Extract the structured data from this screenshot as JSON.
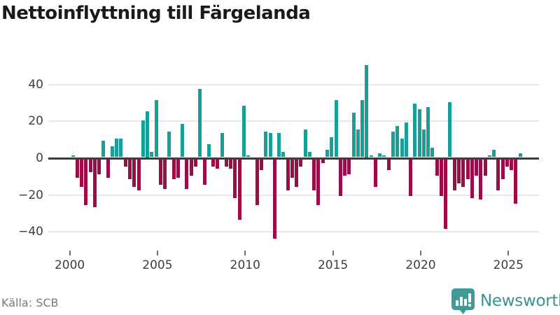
{
  "title": "Nettoinflyttning till Färgelanda",
  "source": "Källa: SCB",
  "brand": {
    "name": "Newsworthy",
    "icon": "newsworthy-speech-bubble-barchart",
    "color": "#419a96",
    "text_color": "#3a938f"
  },
  "colors": {
    "positive": "#16a099",
    "negative": "#9c0c48",
    "axis": "#3d3d3d",
    "grid": "#e8e8e8",
    "tick_label": "#3d3d3d",
    "source_text": "#7a7a7a",
    "background": "#ffffff"
  },
  "chart_data": {
    "type": "bar",
    "title": "Nettoinflyttning till Färgelanda",
    "frequency": "quarterly",
    "start_year": 2000,
    "start_quarter": 1,
    "values": [
      1,
      -10,
      -15,
      -25,
      -7,
      -26,
      -8,
      9,
      -10,
      6,
      10,
      10,
      -4,
      -11,
      -15,
      -17,
      20,
      25,
      3,
      31,
      -14,
      -16,
      14,
      -11,
      -10,
      18,
      -16,
      -9,
      -4,
      37,
      -14,
      7,
      -4,
      -5,
      13,
      -4,
      -5,
      -21,
      -33,
      28,
      1,
      0,
      -25,
      -6,
      14,
      13,
      -43,
      13,
      3,
      -17,
      -10,
      -15,
      -4,
      15,
      3,
      -17,
      -25,
      -2,
      4,
      11,
      31,
      -20,
      -9,
      -8,
      24,
      15,
      31,
      50,
      1,
      -15,
      2,
      1,
      -6,
      14,
      17,
      10,
      19,
      -20,
      29,
      26,
      15,
      27,
      5,
      -9,
      -20,
      -38,
      30,
      -17,
      -13,
      -15,
      -11,
      -21,
      -9,
      -22,
      -9,
      1,
      4,
      -17,
      -11,
      -4,
      -6,
      -24,
      2
    ],
    "ytick_values": [
      40,
      20,
      0,
      -20,
      -40
    ],
    "ytick_labels": [
      "40",
      "20",
      "0",
      "−20",
      "−40"
    ],
    "xtick_indices": [
      0,
      20,
      40,
      60,
      80,
      100
    ],
    "xtick_labels": [
      "2000",
      "2005",
      "2010",
      "2015",
      "2020",
      "2025"
    ],
    "ylim": [
      -48,
      55
    ],
    "grid": "horizontal",
    "legend": "none"
  }
}
